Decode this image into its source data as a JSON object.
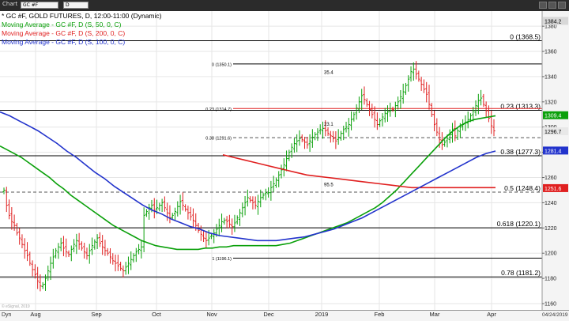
{
  "toolbar": {
    "chart_label": "Chart",
    "symbol_value": "GC #F",
    "interval_value": "D"
  },
  "legend": [
    {
      "text": "* GC #F, GOLD FUTURES, D, 12:00-11:00 (Dynamic)",
      "color": "#000000"
    },
    {
      "text": "Moving Average - GC #F, D (S, 50, 0, C)",
      "color": "#0aa00a"
    },
    {
      "text": "Moving Average - GC #F, D (S, 200, 0, C)",
      "color": "#e02020"
    },
    {
      "text": "Moving Average - GC #F, D (S, 100, 0, C)",
      "color": "#2233cc"
    }
  ],
  "footer": {
    "left_label": "Dyn",
    "right_date": "04/24/2019",
    "watermark": "© eSignal, 2019"
  },
  "chart_data": {
    "type": "ohlc",
    "y_ticks": [
      1160,
      1180,
      1200,
      1220,
      1240,
      1260,
      1280,
      1300,
      1320,
      1340,
      1360,
      1380
    ],
    "ylim": [
      1155,
      1392
    ],
    "x_labels": [
      "Aug",
      "Sep",
      "Oct",
      "Nov",
      "Dec",
      "2019",
      "Feb",
      "Mar",
      "Apr"
    ],
    "price_tags": [
      {
        "text": "1384.2",
        "value": 1384.2,
        "bg": "#d8d8d8",
        "fg": "#000000"
      },
      {
        "text": "1309.4",
        "value": 1309.4,
        "bg": "#0aa00a",
        "fg": "#ffffff"
      },
      {
        "text": "1296.7",
        "value": 1296.7,
        "bg": "#e8e8e8",
        "fg": "#000000"
      },
      {
        "text": "1281.4",
        "value": 1281.4,
        "bg": "#2233cc",
        "fg": "#ffffff"
      },
      {
        "text": "1251.6",
        "value": 1251.6,
        "bg": "#e02020",
        "fg": "#ffffff"
      }
    ],
    "fib_outer": [
      {
        "label": "0 (1368.5)",
        "value": 1368.5,
        "style": "solid",
        "color": "#000000"
      },
      {
        "label": "0.23 (1313.3)",
        "value": 1313.3,
        "style": "solid",
        "color": "#000000"
      },
      {
        "label": "0.38 (1277.3)",
        "value": 1277.3,
        "style": "solid",
        "color": "#000000"
      },
      {
        "label": "0.5 (1248.4)",
        "value": 1248.4,
        "style": "dashed",
        "color": "#555555"
      },
      {
        "label": "0.618 (1220.1)",
        "value": 1220.1,
        "style": "solid",
        "color": "#000000"
      },
      {
        "label": "0.78 (1181.2)",
        "value": 1181.2,
        "style": "solid",
        "color": "#000000"
      }
    ],
    "fib_inner": [
      {
        "label": "0 (1350.1)",
        "value": 1350.1,
        "style": "solid",
        "color": "#000000"
      },
      {
        "label": "0.23 (1314.7)",
        "value": 1314.7,
        "style": "solid",
        "color": "#e02020"
      },
      {
        "label": "0.38 (1291.6)",
        "value": 1291.6,
        "style": "dashed",
        "color": "#555555"
      },
      {
        "label": "1 (1196.1)",
        "value": 1196.1,
        "style": "solid",
        "color": "#000000"
      }
    ],
    "annotations": [
      "35.4",
      "23.1",
      "95.5"
    ],
    "series": [
      {
        "name": "GC #F",
        "type": "ohlc",
        "close": [
          1250,
          1238,
          1230,
          1225,
          1222,
          1216,
          1212,
          1207,
          1202,
          1198,
          1192,
          1187,
          1183,
          1178,
          1174,
          1175,
          1180,
          1186,
          1192,
          1197,
          1202,
          1205,
          1208,
          1204,
          1201,
          1199,
          1203,
          1207,
          1210,
          1207,
          1204,
          1201,
          1198,
          1202,
          1206,
          1209,
          1212,
          1208,
          1205,
          1202,
          1200,
          1197,
          1194,
          1192,
          1190,
          1188,
          1186,
          1189,
          1192,
          1195,
          1198,
          1201,
          1203,
          1205,
          1230,
          1233,
          1236,
          1238,
          1234,
          1236,
          1238,
          1240,
          1236,
          1232,
          1228,
          1230,
          1233,
          1237,
          1241,
          1238,
          1235,
          1232,
          1229,
          1226,
          1222,
          1218,
          1215,
          1212,
          1210,
          1212,
          1214,
          1216,
          1219,
          1222,
          1225,
          1226,
          1225,
          1223,
          1221,
          1224,
          1228,
          1232,
          1236,
          1240,
          1244,
          1242,
          1240,
          1238,
          1241,
          1244,
          1246,
          1248,
          1248,
          1252,
          1255,
          1258,
          1262,
          1266,
          1270,
          1275,
          1280,
          1284,
          1287,
          1289,
          1291,
          1290,
          1288,
          1286,
          1289,
          1292,
          1294,
          1296,
          1298,
          1299,
          1297,
          1295,
          1293,
          1291,
          1289,
          1292,
          1295,
          1298,
          1300,
          1302,
          1306,
          1310,
          1315,
          1320,
          1325,
          1322,
          1318,
          1314,
          1310,
          1306,
          1302,
          1305,
          1308,
          1311,
          1312,
          1313,
          1314,
          1317,
          1320,
          1324,
          1328,
          1333,
          1338,
          1344,
          1346,
          1342,
          1338,
          1334,
          1330,
          1326,
          1318,
          1310,
          1302,
          1296,
          1290,
          1286,
          1288,
          1291,
          1294,
          1298,
          1293,
          1297,
          1300,
          1302,
          1304,
          1306,
          1309,
          1313,
          1317,
          1321,
          1323,
          1318,
          1313,
          1307,
          1301,
          1297
        ]
      },
      {
        "name": "MA 50",
        "type": "line",
        "color": "#0aa00a",
        "values": [
          1285,
          1282,
          1279,
          1276,
          1272,
          1268,
          1264,
          1260,
          1255,
          1251,
          1246,
          1242,
          1238,
          1234,
          1230,
          1226,
          1222,
          1219,
          1216,
          1213,
          1210,
          1208,
          1206,
          1205,
          1204,
          1203,
          1203,
          1203,
          1203,
          1204,
          1204,
          1205,
          1205,
          1206,
          1206,
          1206,
          1206,
          1206,
          1206,
          1206,
          1207,
          1208,
          1210,
          1212,
          1214,
          1216,
          1218,
          1220,
          1222,
          1224,
          1227,
          1230,
          1233,
          1236,
          1240,
          1245,
          1250,
          1256,
          1262,
          1268,
          1274,
          1280,
          1286,
          1292,
          1297,
          1301,
          1304,
          1306,
          1307,
          1308,
          1309
        ]
      },
      {
        "name": "MA 200",
        "type": "line",
        "color": "#e02020",
        "values": [
          1278,
          1276,
          1274,
          1272,
          1270,
          1268,
          1266,
          1264,
          1262,
          1261,
          1260,
          1259,
          1258,
          1257,
          1256,
          1255,
          1254,
          1253,
          1252,
          1252,
          1252,
          1252,
          1252,
          1252,
          1252,
          1252,
          1252
        ]
      },
      {
        "name": "MA 100",
        "type": "line",
        "color": "#2233cc",
        "values": [
          1312,
          1309,
          1305,
          1301,
          1297,
          1292,
          1287,
          1281,
          1276,
          1270,
          1264,
          1259,
          1253,
          1248,
          1243,
          1238,
          1234,
          1231,
          1227,
          1224,
          1221,
          1219,
          1216,
          1214,
          1213,
          1212,
          1211,
          1210,
          1210,
          1210,
          1211,
          1212,
          1213,
          1215,
          1217,
          1219,
          1222,
          1225,
          1228,
          1232,
          1236,
          1240,
          1244,
          1248,
          1252,
          1256,
          1260,
          1264,
          1268,
          1272,
          1276,
          1279,
          1281
        ]
      }
    ]
  }
}
